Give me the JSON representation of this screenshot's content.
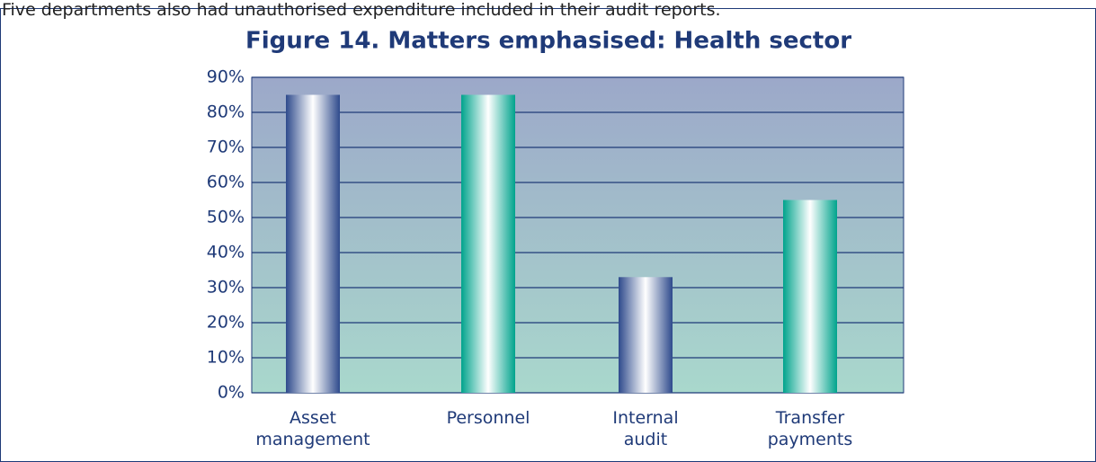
{
  "intro_text": "Five departments also had unauthorised expenditure included in their audit reports.",
  "chart_data": {
    "type": "bar",
    "title": "Figure 14. Matters emphasised: Health sector",
    "categories": [
      "Asset management",
      "Personnel",
      "Internal audit",
      "Transfer payments"
    ],
    "values": [
      85,
      85,
      33,
      55
    ],
    "colors": [
      "#2e4a8c",
      "#00a38c",
      "#2e4a8c",
      "#00a38c"
    ],
    "ylim": [
      0,
      90
    ],
    "yticks": [
      {
        "value": 0,
        "label": "0%"
      },
      {
        "value": 10,
        "label": "10%"
      },
      {
        "value": 20,
        "label": "20%"
      },
      {
        "value": 30,
        "label": "30%"
      },
      {
        "value": 40,
        "label": "40%"
      },
      {
        "value": 50,
        "label": "50%"
      },
      {
        "value": 60,
        "label": "60%"
      },
      {
        "value": 70,
        "label": "70%"
      },
      {
        "value": 80,
        "label": "80%"
      },
      {
        "value": 90,
        "label": "90%"
      }
    ],
    "grid": true
  }
}
